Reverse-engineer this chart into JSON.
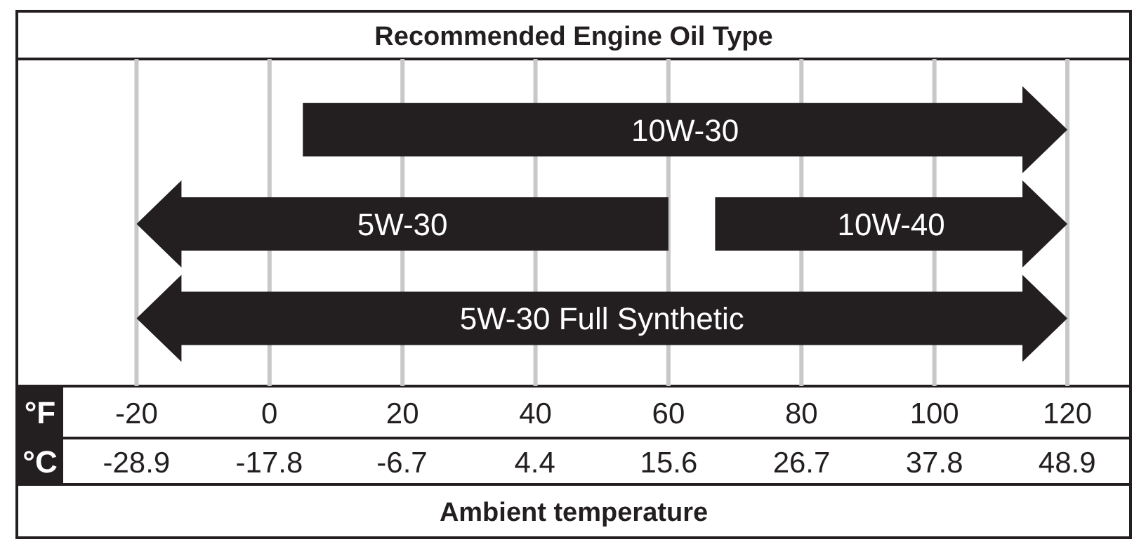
{
  "chart_data": {
    "type": "bar",
    "orientation": "horizontal",
    "title": "Recommended Engine Oil Type",
    "xlabel": "Ambient temperature",
    "annotations": [
      "°F",
      "°C"
    ],
    "categories": [
      null,
      null,
      null
    ],
    "xlim": [
      -38,
      129.5
    ],
    "xticks": [
      -20,
      0,
      20,
      40,
      60,
      80,
      100,
      120
    ],
    "x2lim": [
      -38.9,
      54.2
    ],
    "x2ticks": [
      -28.9,
      -17.8,
      -6.7,
      4.4,
      15.6,
      26.7,
      37.8,
      48.9
    ],
    "grid": "x",
    "series": [
      {
        "name": "10W-30",
        "color": "#231f20",
        "base": [
          5,
          null,
          null
        ],
        "values": [
          115,
          null,
          null
        ]
      },
      {
        "name": "5W-30",
        "color": "#231f20",
        "base": [
          null,
          -20,
          null
        ],
        "values": [
          null,
          80,
          null
        ]
      },
      {
        "name": "10W-40",
        "color": "#231f20",
        "base": [
          null,
          67,
          null
        ],
        "values": [
          null,
          53,
          null
        ]
      },
      {
        "name": "5W-30 Full Synthetic",
        "color": "#231f20",
        "base": [
          null,
          null,
          -20
        ],
        "values": [
          null,
          null,
          140
        ]
      }
    ]
  }
}
